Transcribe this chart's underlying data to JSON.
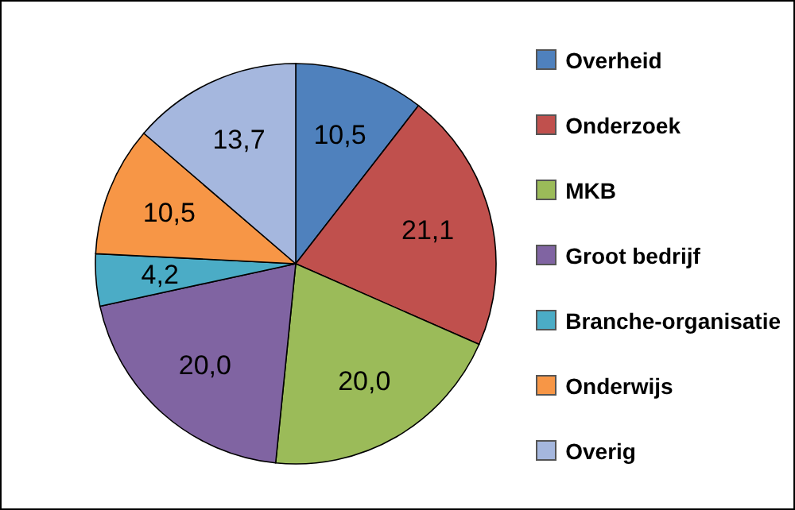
{
  "chart_data": {
    "type": "pie",
    "categories": [
      "Overheid",
      "Onderzoek",
      "MKB",
      "Groot bedrijf",
      "Branche-organisatie",
      "Onderwijs",
      "Overig"
    ],
    "values": [
      10.5,
      21.1,
      20.0,
      20.0,
      4.2,
      10.5,
      13.7
    ],
    "value_labels": [
      "10,5",
      "21,1",
      "20,0",
      "20,0",
      "4,2",
      "10,5",
      "13,7"
    ],
    "colors": [
      "#4f81bd",
      "#c0504d",
      "#9bbb59",
      "#8064a2",
      "#4bacc6",
      "#f79646",
      "#a5b7de"
    ],
    "legend": "right"
  }
}
